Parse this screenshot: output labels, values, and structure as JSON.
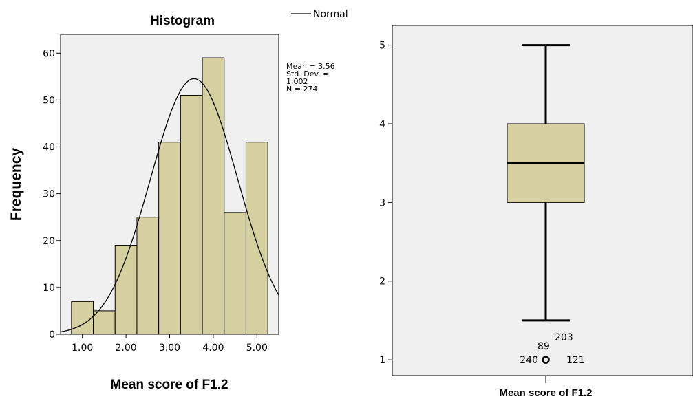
{
  "colors": {
    "fill": "#d6cf9f",
    "stroke": "#000000",
    "panel": "#f0f0f0"
  },
  "chart_data": [
    {
      "type": "bar",
      "title": "Histogram",
      "xlabel": "Mean score of F1.2",
      "ylabel": "Frequency",
      "legend": {
        "label": "Normal",
        "placement": "top-right"
      },
      "stats": {
        "mean": "Mean = 3.56",
        "std_line1": "Std. Dev. =",
        "std_line2": "1.002",
        "n": "N = 274"
      },
      "bins": [
        {
          "start": 0.75,
          "end": 1.25,
          "value": 7
        },
        {
          "start": 1.25,
          "end": 1.75,
          "value": 5
        },
        {
          "start": 1.75,
          "end": 2.25,
          "value": 19
        },
        {
          "start": 2.25,
          "end": 2.75,
          "value": 25
        },
        {
          "start": 2.75,
          "end": 3.25,
          "value": 41
        },
        {
          "start": 3.25,
          "end": 3.75,
          "value": 51
        },
        {
          "start": 3.75,
          "end": 4.25,
          "value": 59
        },
        {
          "start": 4.25,
          "end": 4.75,
          "value": 26
        },
        {
          "start": 4.75,
          "end": 5.25,
          "value": 41
        }
      ],
      "normal_curve": {
        "mean": 3.56,
        "sd": 1.002,
        "n": 274,
        "bin_width": 0.5
      },
      "xticks": [
        "1.00",
        "2.00",
        "3.00",
        "4.00",
        "5.00"
      ],
      "xtick_values": [
        1,
        2,
        3,
        4,
        5
      ],
      "yticks": [
        "0",
        "10",
        "20",
        "30",
        "40",
        "50",
        "60"
      ],
      "xlim": [
        0.5,
        5.5
      ],
      "ylim": [
        0,
        64
      ]
    },
    {
      "type": "box",
      "xlabel": "Mean score of F1.2",
      "box": {
        "min": 1.5,
        "q1": 3.0,
        "median": 3.5,
        "q3": 4.0,
        "max": 5.0
      },
      "outliers": [
        {
          "value": 1.0,
          "labels": [
            "203",
            "89",
            "240",
            "121"
          ]
        }
      ],
      "yticks": [
        "1",
        "2",
        "3",
        "4",
        "5"
      ],
      "ylim": [
        0.8,
        5.25
      ],
      "grid": false
    }
  ]
}
